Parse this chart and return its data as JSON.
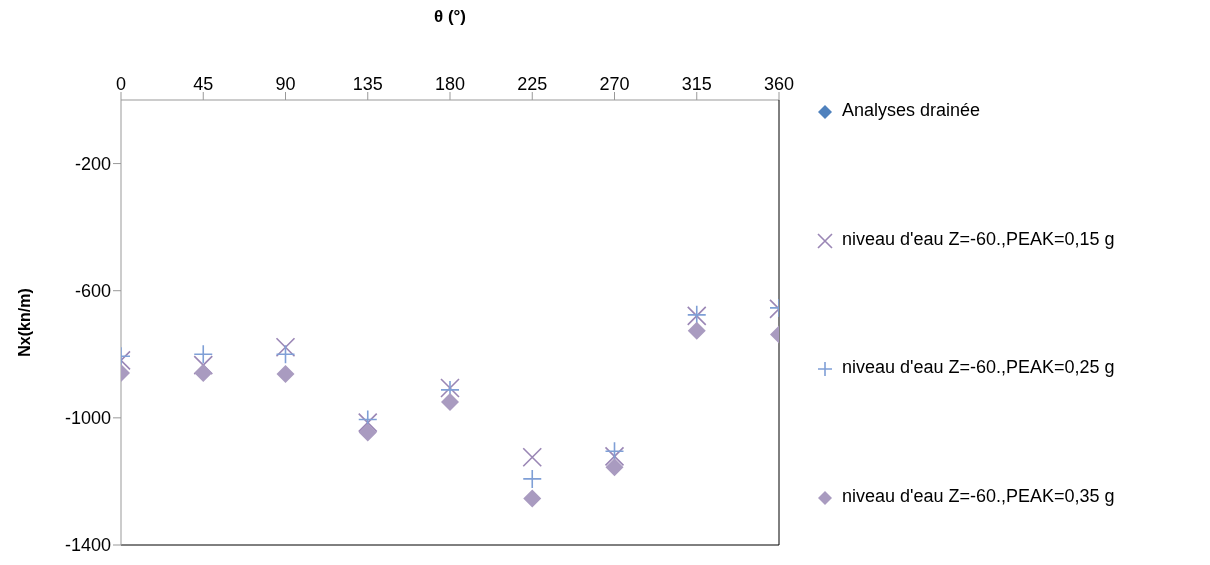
{
  "chart_data": {
    "type": "scatter",
    "xlabel": "θ (°)",
    "ylabel": "Nx(kn/m)",
    "x": [
      0,
      45,
      90,
      135,
      180,
      225,
      270,
      315,
      360
    ],
    "xlim": [
      0,
      360
    ],
    "xticks": [
      0,
      45,
      90,
      135,
      180,
      225,
      270,
      315,
      360
    ],
    "ylim": [
      -1400,
      0
    ],
    "yticks": [
      -1400,
      -1000,
      -600,
      -200
    ],
    "grid": false,
    "legend": "right",
    "series": [
      {
        "name": "Analyses drainée",
        "color": "#4f81bd",
        "marker": "diamond",
        "values": [
          null,
          null,
          null,
          null,
          null,
          null,
          null,
          null,
          null
        ]
      },
      {
        "name": "niveau d'eau Z=-60.,PEAK=0,15 g",
        "color": "#9a86b5",
        "marker": "x",
        "values": [
          -819,
          -834,
          -778,
          -1015,
          -906,
          -1124,
          -1121,
          -679,
          -657
        ]
      },
      {
        "name": "niveau d'eau Z=-60.,PEAK=0,25 g",
        "color": "#7f9fd6",
        "marker": "cross",
        "values": [
          -806,
          -800,
          -800,
          -1005,
          -912,
          -1192,
          -1105,
          -676,
          -654
        ]
      },
      {
        "name": "niveau d'eau Z=-60.,PEAK=0,35 g",
        "color": "#a99bc0",
        "marker": "diamond",
        "values": [
          -859,
          -859,
          -862,
          -1046,
          -950,
          -1254,
          -1155,
          -726,
          -738
        ]
      }
    ]
  }
}
